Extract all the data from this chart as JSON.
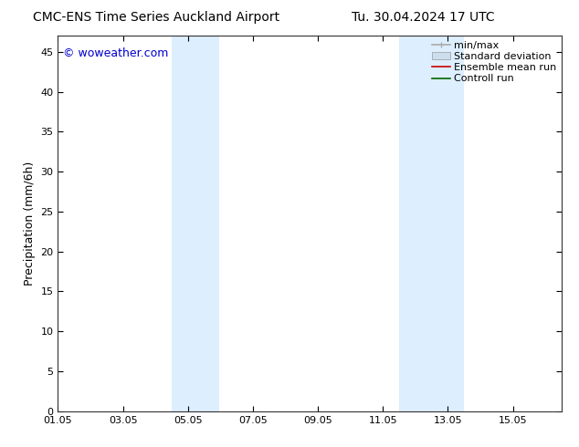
{
  "title_left": "CMC-ENS Time Series Auckland Airport",
  "title_right": "Tu. 30.04.2024 17 UTC",
  "ylabel": "Precipitation (mm/6h)",
  "watermark": "© woweather.com",
  "watermark_color": "#0000cc",
  "background_color": "#ffffff",
  "plot_bg_color": "#ffffff",
  "ylim": [
    0,
    47
  ],
  "yticks": [
    0,
    5,
    10,
    15,
    20,
    25,
    30,
    35,
    40,
    45
  ],
  "xmin": 0,
  "xmax": 15.5,
  "xtick_labels": [
    "01.05",
    "03.05",
    "05.05",
    "07.05",
    "09.05",
    "11.05",
    "13.05",
    "15.05"
  ],
  "xtick_positions": [
    0,
    2,
    4,
    6,
    8,
    10,
    12,
    14
  ],
  "shaded_regions": [
    {
      "xstart": 3.5,
      "xend": 4.95,
      "color": "#ddeeff"
    },
    {
      "xstart": 10.5,
      "xend": 12.5,
      "color": "#ddeeff"
    }
  ],
  "legend_entries": [
    {
      "label": "min/max",
      "color": "#aaaaaa",
      "lw": 1.2,
      "type": "minmax"
    },
    {
      "label": "Standard deviation",
      "color": "#ccddee",
      "lw": 8,
      "type": "band"
    },
    {
      "label": "Ensemble mean run",
      "color": "#cc0000",
      "lw": 1.2,
      "type": "line"
    },
    {
      "label": "Controll run",
      "color": "#006600",
      "lw": 1.2,
      "type": "line"
    }
  ],
  "title_fontsize": 10,
  "tick_fontsize": 8,
  "ylabel_fontsize": 9,
  "watermark_fontsize": 9,
  "legend_fontsize": 8
}
